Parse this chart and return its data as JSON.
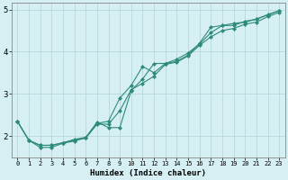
{
  "xlabel": "Humidex (Indice chaleur)",
  "background_color": "#d6eff2",
  "grid_color": "#b8d8dc",
  "line_color": "#2e8b7a",
  "xlim": [
    -0.5,
    23.5
  ],
  "ylim": [
    1.5,
    5.15
  ],
  "yticks": [
    2,
    3,
    4,
    5
  ],
  "xticks": [
    0,
    1,
    2,
    3,
    4,
    5,
    6,
    7,
    8,
    9,
    10,
    11,
    12,
    13,
    14,
    15,
    16,
    17,
    18,
    19,
    20,
    21,
    22,
    23
  ],
  "series1_x": [
    0,
    1,
    2,
    3,
    4,
    5,
    6,
    7,
    8,
    9,
    10,
    11,
    12,
    13,
    14,
    15,
    16,
    17,
    18,
    19,
    20,
    21,
    22,
    23
  ],
  "series1_y": [
    2.35,
    1.9,
    1.78,
    1.78,
    1.84,
    1.9,
    1.95,
    2.28,
    2.28,
    2.6,
    3.1,
    3.25,
    3.42,
    3.7,
    3.75,
    3.9,
    4.15,
    4.35,
    4.5,
    4.55,
    4.65,
    4.7,
    4.83,
    4.93
  ],
  "series2_x": [
    0,
    1,
    2,
    3,
    4,
    5,
    6,
    7,
    8,
    9,
    10,
    11,
    12,
    13,
    14,
    15,
    16,
    17,
    18,
    19,
    20,
    21,
    22,
    23
  ],
  "series2_y": [
    2.35,
    1.9,
    1.78,
    1.78,
    1.84,
    1.92,
    1.97,
    2.3,
    2.35,
    2.9,
    3.2,
    3.65,
    3.5,
    3.72,
    3.77,
    3.92,
    4.2,
    4.58,
    4.62,
    4.62,
    4.72,
    4.77,
    4.87,
    4.97
  ],
  "series3_x": [
    0,
    1,
    2,
    3,
    4,
    5,
    6,
    7,
    8,
    9,
    10,
    11,
    12,
    13,
    14,
    15,
    16,
    17,
    18,
    19,
    20,
    21,
    22,
    23
  ],
  "series3_y": [
    2.35,
    1.9,
    1.73,
    1.73,
    1.83,
    1.88,
    1.96,
    2.33,
    2.2,
    2.2,
    3.08,
    3.35,
    3.72,
    3.72,
    3.82,
    3.97,
    4.18,
    4.45,
    4.62,
    4.67,
    4.7,
    4.77,
    4.88,
    4.97
  ]
}
